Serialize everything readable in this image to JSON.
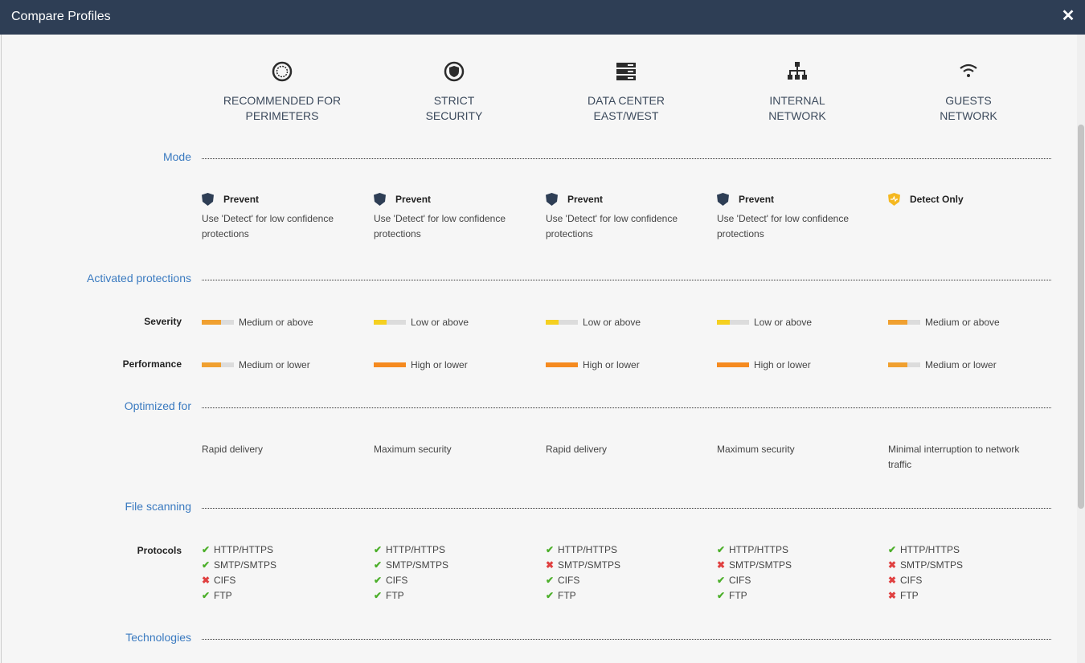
{
  "window": {
    "title": "Compare Profiles",
    "close_label": "✕"
  },
  "profiles": [
    {
      "name_line1": "RECOMMENDED FOR",
      "name_line2": "PERIMETERS",
      "icon": "perimeter-icon"
    },
    {
      "name_line1": "STRICT",
      "name_line2": "SECURITY",
      "icon": "shield-icon"
    },
    {
      "name_line1": "DATA CENTER",
      "name_line2": "EAST/WEST",
      "icon": "server-icon"
    },
    {
      "name_line1": "INTERNAL",
      "name_line2": "NETWORK",
      "icon": "network-icon"
    },
    {
      "name_line1": "GUESTS",
      "name_line2": "NETWORK",
      "icon": "wifi-icon"
    }
  ],
  "sections": {
    "mode": "Mode",
    "activated": "Activated protections",
    "optimized": "Optimized for",
    "file_scanning": "File scanning",
    "technologies": "Technologies"
  },
  "row_labels": {
    "severity": "Severity",
    "performance": "Performance",
    "protocols": "Protocols"
  },
  "modes": [
    {
      "label": "Prevent",
      "desc": "Use 'Detect' for low confidence protections",
      "icon": "prevent-shield-icon"
    },
    {
      "label": "Prevent",
      "desc": "Use 'Detect' for low confidence protections",
      "icon": "prevent-shield-icon"
    },
    {
      "label": "Prevent",
      "desc": "Use 'Detect' for low confidence protections",
      "icon": "prevent-shield-icon"
    },
    {
      "label": "Prevent",
      "desc": "Use 'Detect' for low confidence protections",
      "icon": "prevent-shield-icon"
    },
    {
      "label": "Detect Only",
      "desc": "",
      "icon": "detect-shield-icon"
    }
  ],
  "severity": [
    {
      "label": "Medium or above",
      "level": 0.6,
      "color": "#f0a030"
    },
    {
      "label": "Low or above",
      "level": 0.3,
      "color": "#f5d020"
    },
    {
      "label": "Low or above",
      "level": 0.3,
      "color": "#f5d020"
    },
    {
      "label": "Low or above",
      "level": 0.3,
      "color": "#f5d020"
    },
    {
      "label": "Medium or above",
      "level": 0.6,
      "color": "#f0a030"
    }
  ],
  "performance": [
    {
      "label": "Medium or lower",
      "level": 0.6,
      "color": "#f0a030"
    },
    {
      "label": "High or lower",
      "level": 1.0,
      "color": "#f58a20"
    },
    {
      "label": "High or lower",
      "level": 1.0,
      "color": "#f58a20"
    },
    {
      "label": "High or lower",
      "level": 1.0,
      "color": "#f58a20"
    },
    {
      "label": "Medium or lower",
      "level": 0.6,
      "color": "#f0a030"
    }
  ],
  "optimized_for": [
    "Rapid delivery",
    "Maximum security",
    "Rapid delivery",
    "Maximum security",
    "Minimal interruption to network traffic"
  ],
  "protocol_names": [
    "HTTP/HTTPS",
    "SMTP/SMTPS",
    "CIFS",
    "FTP"
  ],
  "protocols": [
    [
      true,
      true,
      false,
      true
    ],
    [
      true,
      true,
      true,
      true
    ],
    [
      true,
      false,
      true,
      true
    ],
    [
      true,
      false,
      true,
      true
    ],
    [
      true,
      false,
      false,
      false
    ]
  ]
}
